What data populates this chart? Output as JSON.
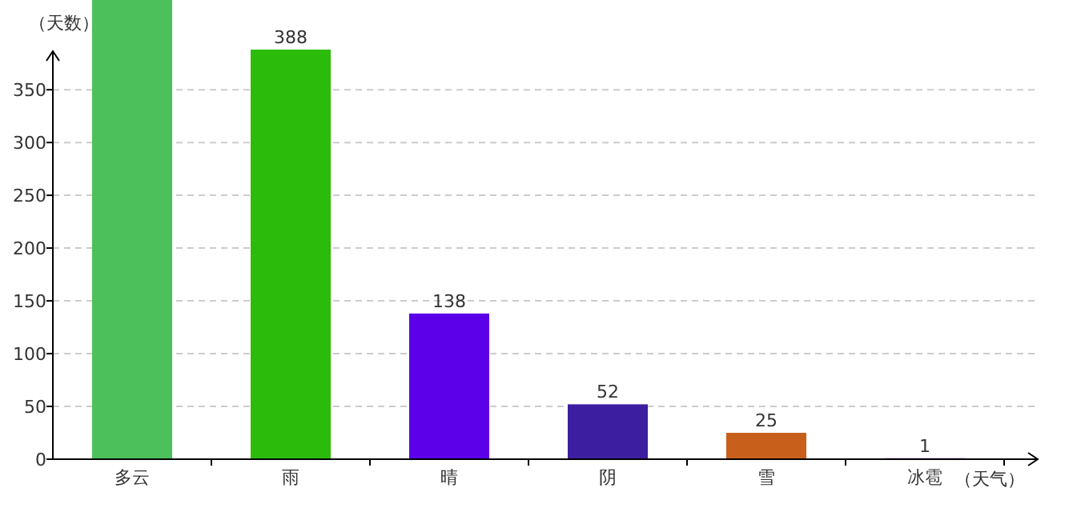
{
  "chart_data": {
    "type": "bar",
    "ylabel": "（天数）",
    "xlabel": "（天气）",
    "categories": [
      "多云",
      "雨",
      "晴",
      "阴",
      "雪",
      "冰雹"
    ],
    "values": [
      435,
      388,
      138,
      52,
      25,
      1
    ],
    "colors": [
      "#4cc05a",
      "#2bbb0b",
      "#5b00e8",
      "#3c1fa0",
      "#c8601c",
      "#9a3fd0"
    ],
    "value_labels": [
      null,
      "388",
      "138",
      "52",
      "25",
      "1"
    ],
    "ylim": [
      0,
      435
    ],
    "yticks": [
      0,
      50,
      100,
      150,
      200,
      250,
      300,
      350
    ],
    "grid": "y"
  }
}
